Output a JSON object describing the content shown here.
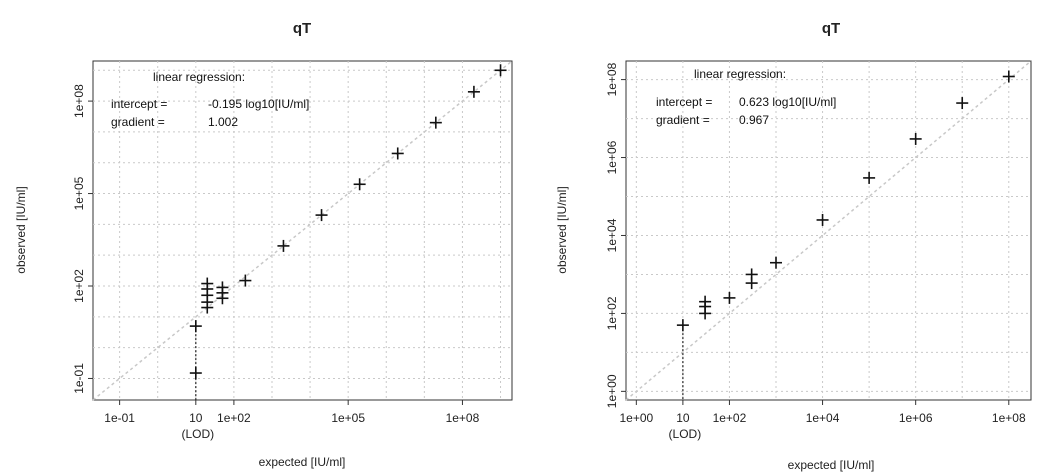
{
  "chart_data": [
    {
      "type": "scatter",
      "title": "qT",
      "xlabel": "expected [IU/ml]",
      "ylabel": "observed [IU/ml]",
      "log_x": true,
      "log_y": true,
      "xlim": [
        0.02,
        2000000000
      ],
      "ylim": [
        0.02,
        2000000000
      ],
      "grid": true,
      "x_ticks": [
        {
          "value": 0.1,
          "label": "1e-01"
        },
        {
          "value": 100,
          "label": "1e+02"
        },
        {
          "value": 100000,
          "label": "1e+05"
        },
        {
          "value": 100000000,
          "label": "1e+08"
        }
      ],
      "x_extra_tick": {
        "value": 10,
        "label": "10",
        "sublabel": "(LOD)"
      },
      "y_ticks": [
        {
          "value": 0.1,
          "label": "1e-01"
        },
        {
          "value": 100,
          "label": "1e+02"
        },
        {
          "value": 100000,
          "label": "1e+05"
        },
        {
          "value": 100000000,
          "label": "1e+08"
        }
      ],
      "annotation": {
        "heading": "linear regression:",
        "intercept_label": "intercept =",
        "intercept_value": "-0.195 log10[IU/ml]",
        "gradient_label": "gradient =",
        "gradient_value": "1.002"
      },
      "identity_line": true,
      "lod_x": 10,
      "points": [
        {
          "x": 10,
          "y": 0.15
        },
        {
          "x": 10,
          "y": 5
        },
        {
          "x": 20,
          "y": 20
        },
        {
          "x": 20,
          "y": 30
        },
        {
          "x": 20,
          "y": 50
        },
        {
          "x": 20,
          "y": 80
        },
        {
          "x": 20,
          "y": 120
        },
        {
          "x": 50,
          "y": 40
        },
        {
          "x": 50,
          "y": 60
        },
        {
          "x": 50,
          "y": 90
        },
        {
          "x": 200,
          "y": 150
        },
        {
          "x": 2000,
          "y": 2000
        },
        {
          "x": 20000,
          "y": 20000
        },
        {
          "x": 200000,
          "y": 200000
        },
        {
          "x": 2000000,
          "y": 2000000
        },
        {
          "x": 20000000,
          "y": 20000000
        },
        {
          "x": 200000000,
          "y": 200000000
        },
        {
          "x": 1000000000,
          "y": 1000000000
        }
      ]
    },
    {
      "type": "scatter",
      "title": "qT",
      "xlabel": "expected [IU/ml]",
      "ylabel": "observed [IU/ml]",
      "log_x": true,
      "log_y": true,
      "xlim": [
        0.6,
        300000000
      ],
      "ylim": [
        0.6,
        300000000
      ],
      "grid": true,
      "x_ticks": [
        {
          "value": 1,
          "label": "1e+00"
        },
        {
          "value": 100,
          "label": "1e+02"
        },
        {
          "value": 10000,
          "label": "1e+04"
        },
        {
          "value": 1000000,
          "label": "1e+06"
        },
        {
          "value": 100000000,
          "label": "1e+08"
        }
      ],
      "x_extra_tick": {
        "value": 10,
        "label": "10",
        "sublabel": "(LOD)"
      },
      "y_ticks": [
        {
          "value": 1,
          "label": "1e+00"
        },
        {
          "value": 100,
          "label": "1e+02"
        },
        {
          "value": 10000,
          "label": "1e+04"
        },
        {
          "value": 1000000,
          "label": "1e+06"
        },
        {
          "value": 100000000,
          "label": "1e+08"
        }
      ],
      "annotation": {
        "heading": "linear regression:",
        "intercept_label": "intercept =",
        "intercept_value": "0.623 log10[IU/ml]",
        "gradient_label": "gradient =",
        "gradient_value": "0.967"
      },
      "identity_line": true,
      "lod_x": 10,
      "points": [
        {
          "x": 10,
          "y": 50
        },
        {
          "x": 30,
          "y": 100
        },
        {
          "x": 30,
          "y": 150
        },
        {
          "x": 30,
          "y": 200
        },
        {
          "x": 100,
          "y": 250
        },
        {
          "x": 300,
          "y": 600
        },
        {
          "x": 300,
          "y": 1000
        },
        {
          "x": 1000,
          "y": 2000
        },
        {
          "x": 10000,
          "y": 25000
        },
        {
          "x": 100000,
          "y": 300000
        },
        {
          "x": 1000000,
          "y": 3000000
        },
        {
          "x": 10000000,
          "y": 25000000
        },
        {
          "x": 100000000,
          "y": 120000000
        }
      ]
    }
  ]
}
